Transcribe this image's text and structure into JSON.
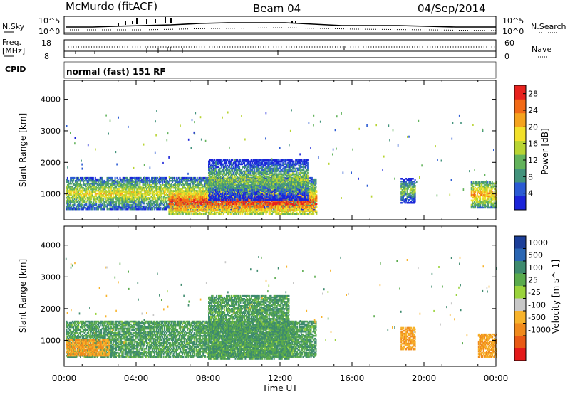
{
  "header": {
    "station": "McMurdo (fitACF)",
    "beam": "Beam 04",
    "date": "04/Sep/2014"
  },
  "noise_panel": {
    "left_label": "N.Sky",
    "right_label": "N.Search",
    "left_ticks": [
      "10^5",
      "10^0"
    ],
    "right_ticks": [
      "10^5",
      "10^0"
    ]
  },
  "freq_panel": {
    "left_label_1": "Freq.",
    "left_label_2": "[MHz]",
    "right_label": "Nave",
    "left_ticks": [
      "18",
      "8"
    ],
    "right_ticks": [
      "60",
      "0"
    ]
  },
  "cpid": {
    "label": "CPID",
    "value": "normal (fast) 151 RF"
  },
  "x_axis": {
    "label": "Time UT",
    "ticks": [
      "00:00",
      "04:00",
      "08:00",
      "12:00",
      "16:00",
      "20:00",
      "00:00"
    ]
  },
  "colors": {
    "power": [
      "#1b24d9",
      "#2b5bd4",
      "#43937c",
      "#63b35c",
      "#b8d432",
      "#f2e02a",
      "#f5a31e",
      "#f26a16",
      "#e8221e"
    ],
    "velocity": [
      "#1c3f99",
      "#2a66b3",
      "#3e8a6e",
      "#5aab4c",
      "#9ad33c",
      "#c8c8c8",
      "#f7b32b",
      "#f08a1c",
      "#e95a15",
      "#e41a1a"
    ]
  },
  "chart_data": [
    {
      "type": "heatmap",
      "panel": "power",
      "ylabel": "Slant Range [km]",
      "ylim": [
        180,
        4600
      ],
      "y_ticks": [
        1000,
        2000,
        3000,
        4000
      ],
      "x_range_hours": [
        0,
        24
      ],
      "colorbar": {
        "label": "Power [dB]",
        "ticks": [
          4,
          8,
          12,
          16,
          20,
          24,
          28
        ],
        "range": [
          0,
          30
        ]
      },
      "features": [
        {
          "t_start": 0.1,
          "t_end": 14.0,
          "range_min": 500,
          "range_max": 1500,
          "typical_db": 18
        },
        {
          "t_start": 5.8,
          "t_end": 14.0,
          "range_min": 350,
          "range_max": 1100,
          "typical_db": 28
        },
        {
          "t_start": 8.0,
          "t_end": 13.5,
          "range_min": 800,
          "range_max": 2100,
          "typical_db": 14
        },
        {
          "t_start": 18.7,
          "t_end": 19.5,
          "range_min": 700,
          "range_max": 1500,
          "typical_db": 14
        },
        {
          "t_start": 22.6,
          "t_end": 24.0,
          "range_min": 550,
          "range_max": 1400,
          "typical_db": 22
        }
      ]
    },
    {
      "type": "heatmap",
      "panel": "velocity",
      "ylabel": "Slant Range [km]",
      "ylim": [
        180,
        4600
      ],
      "y_ticks": [
        1000,
        2000,
        3000,
        4000
      ],
      "x_range_hours": [
        0,
        24
      ],
      "colorbar": {
        "label": "Velocity [m s^-1]",
        "ticks": [
          "1000",
          "500",
          "100",
          "25",
          "-25",
          "-100",
          "-500",
          "-1000"
        ]
      },
      "features": [
        {
          "t_start": 0.1,
          "t_end": 14.0,
          "range_min": 450,
          "range_max": 1600,
          "typical_velocity": 100
        },
        {
          "t_start": 0.1,
          "t_end": 2.5,
          "range_min": 500,
          "range_max": 1000,
          "typical_velocity": -300
        },
        {
          "t_start": 8.0,
          "t_end": 12.5,
          "range_min": 400,
          "range_max": 2400,
          "typical_velocity": 100
        },
        {
          "t_start": 18.7,
          "t_end": 19.5,
          "range_min": 700,
          "range_max": 1400,
          "typical_velocity": -300
        },
        {
          "t_start": 23.0,
          "t_end": 24.0,
          "range_min": 450,
          "range_max": 1200,
          "typical_velocity": -300
        }
      ]
    }
  ]
}
